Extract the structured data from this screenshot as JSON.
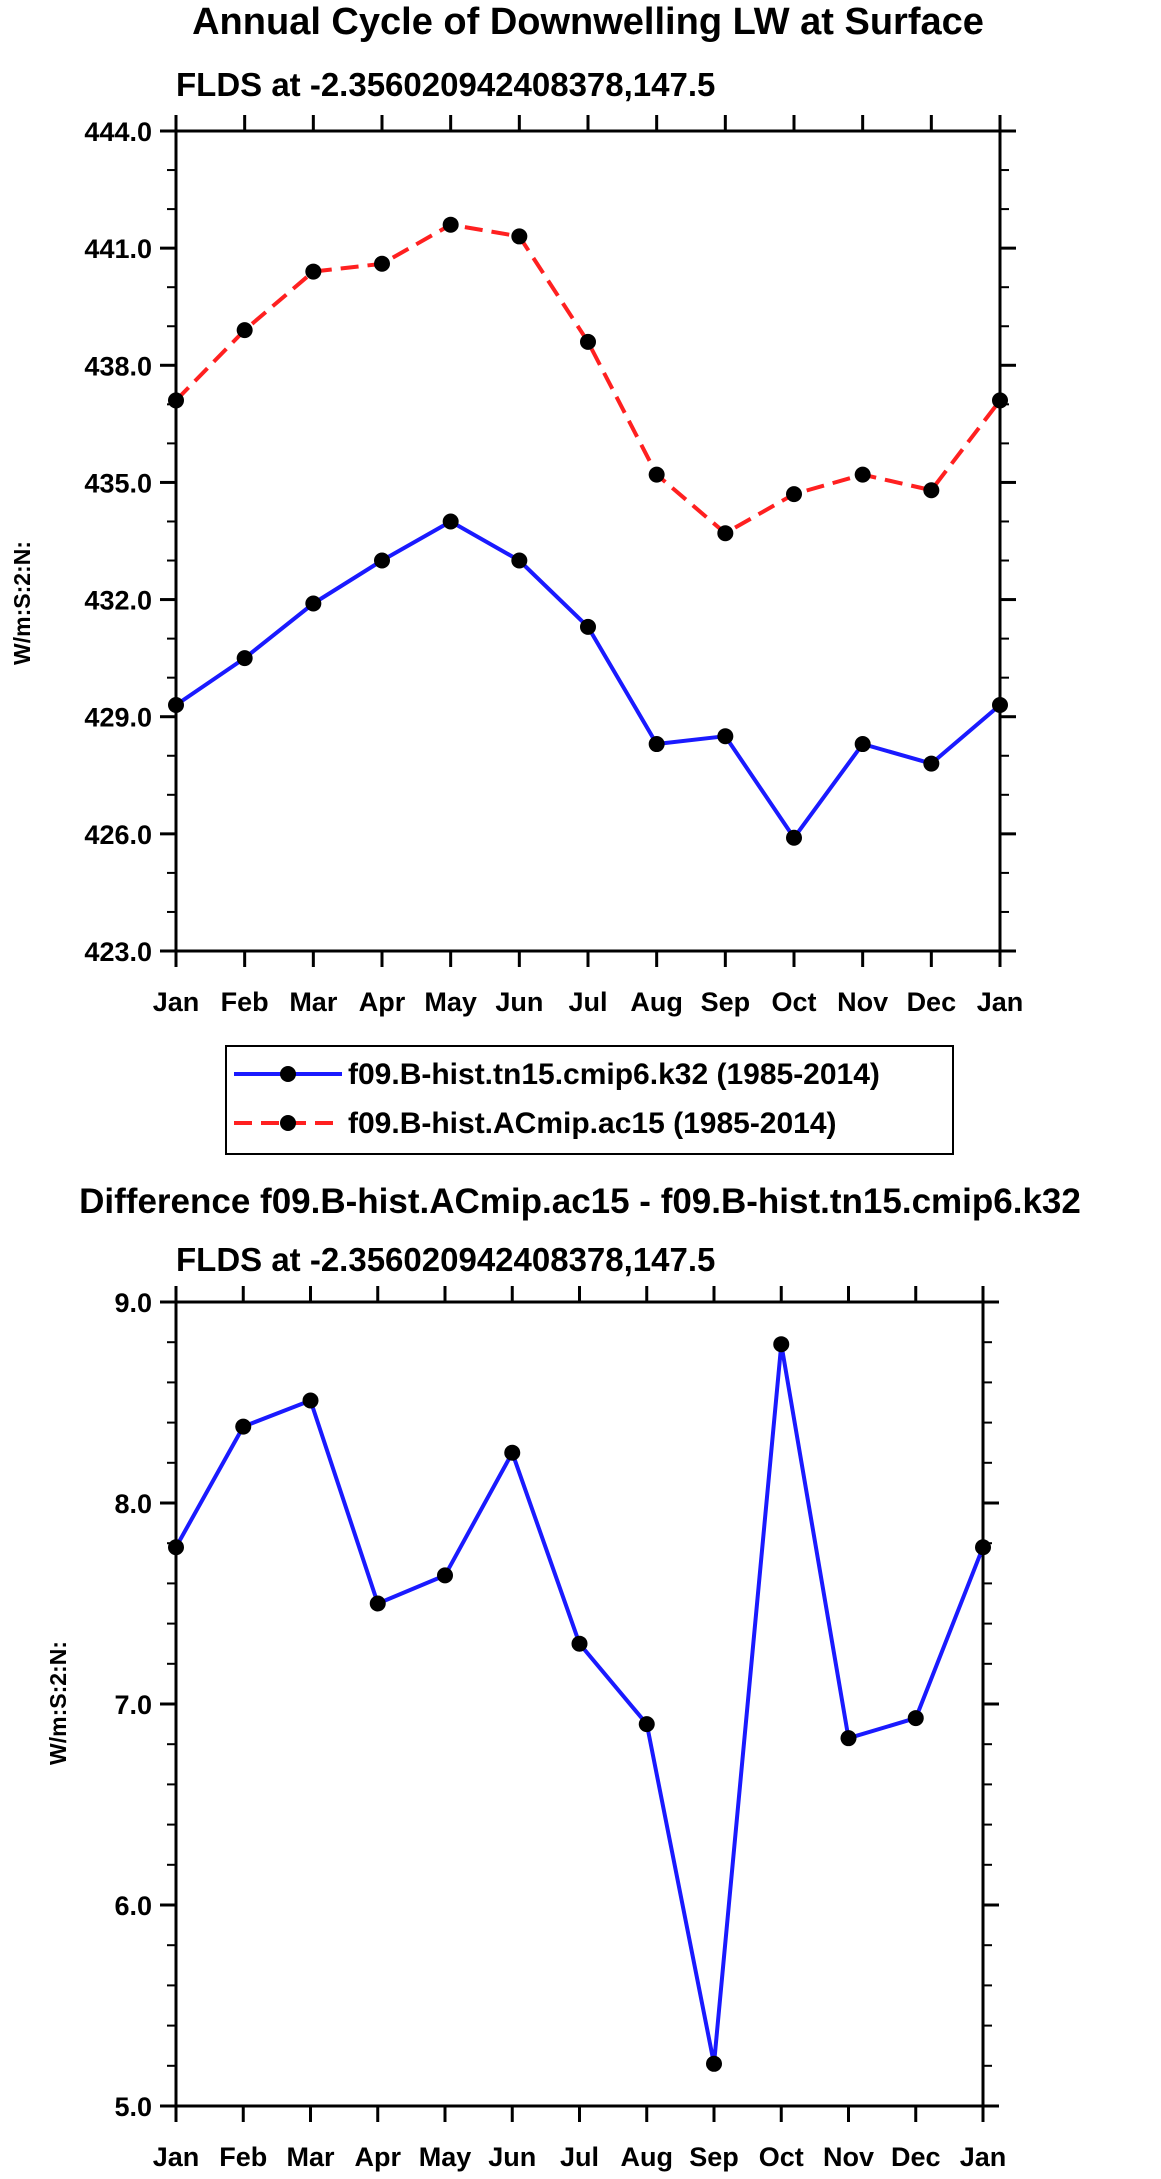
{
  "chart_data": [
    {
      "type": "line",
      "title": "Annual Cycle of Downwelling LW at Surface",
      "subtitle": "FLDS at -2.356020942408378,147.5",
      "ylabel": "W/m:S:2:N:",
      "ylim": [
        423.0,
        444.0
      ],
      "yticks": [
        "423.0",
        "426.0",
        "429.0",
        "432.0",
        "435.0",
        "438.0",
        "441.0",
        "444.0"
      ],
      "categories": [
        "Jan",
        "Feb",
        "Mar",
        "Apr",
        "May",
        "Jun",
        "Jul",
        "Aug",
        "Sep",
        "Oct",
        "Nov",
        "Dec",
        "Jan"
      ],
      "series": [
        {
          "name": "f09.B-hist.tn15.cmip6.k32 (1985-2014)",
          "color": "#1a1aff",
          "dash": "solid",
          "values": [
            429.3,
            430.5,
            431.9,
            433.0,
            434.0,
            433.0,
            431.3,
            428.3,
            428.5,
            425.9,
            428.3,
            427.8,
            429.3
          ]
        },
        {
          "name": "f09.B-hist.ACmip.ac15 (1985-2014)",
          "color": "#ff2020",
          "dash": "dashed",
          "values": [
            437.1,
            438.9,
            440.4,
            440.6,
            441.6,
            441.3,
            438.6,
            435.2,
            433.7,
            434.7,
            435.2,
            434.8,
            437.1
          ]
        }
      ]
    },
    {
      "type": "line",
      "title": "Difference f09.B-hist.ACmip.ac15 - f09.B-hist.tn15.cmip6.k32",
      "subtitle": "FLDS at -2.356020942408378,147.5",
      "ylabel": "W/m:S:2:N:",
      "ylim": [
        5.0,
        9.0
      ],
      "yticks": [
        "5.0",
        "6.0",
        "7.0",
        "8.0",
        "9.0"
      ],
      "categories": [
        "Jan",
        "Feb",
        "Mar",
        "Apr",
        "May",
        "Jun",
        "Jul",
        "Aug",
        "Sep",
        "Oct",
        "Nov",
        "Dec",
        "Jan"
      ],
      "series": [
        {
          "name": "difference",
          "color": "#1a1aff",
          "dash": "solid",
          "values": [
            7.78,
            8.38,
            8.51,
            7.5,
            7.64,
            8.25,
            7.3,
            6.9,
            5.21,
            8.79,
            6.83,
            6.93,
            7.78
          ]
        }
      ]
    }
  ]
}
